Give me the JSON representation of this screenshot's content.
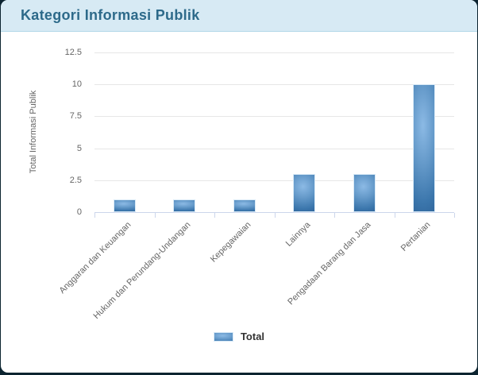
{
  "header": {
    "title": "Kategori Informasi Publik"
  },
  "chart_data": {
    "type": "bar",
    "title": "",
    "xlabel": "",
    "ylabel": "Total Informasi Publik",
    "categories": [
      "Anggaran dan Keuangan",
      "Hukum dan Perundang-Undangan",
      "Kepegawaian",
      "Lainnya",
      "Pengadaan Barang dan Jasa",
      "Pertanian"
    ],
    "series": [
      {
        "name": "Total",
        "values": [
          1,
          1,
          1,
          3,
          3,
          10
        ]
      }
    ],
    "ylim": [
      0,
      12.5
    ],
    "yticks": [
      0,
      2.5,
      5,
      7.5,
      10,
      12.5
    ],
    "grid": true,
    "legend_position": "bottom"
  },
  "colors": {
    "page_background": "#0c2430",
    "card_background": "#ffffff",
    "header_background": "#d7eaf4",
    "header_border": "#b3d7e8",
    "title_text": "#2d6a8a",
    "bar_light": "#8cbae5",
    "bar_dark": "#3b76ac",
    "gridline": "#e6e6e6",
    "axis": "#ccd6eb",
    "tick_text": "#666666",
    "legend_text": "#333333"
  }
}
